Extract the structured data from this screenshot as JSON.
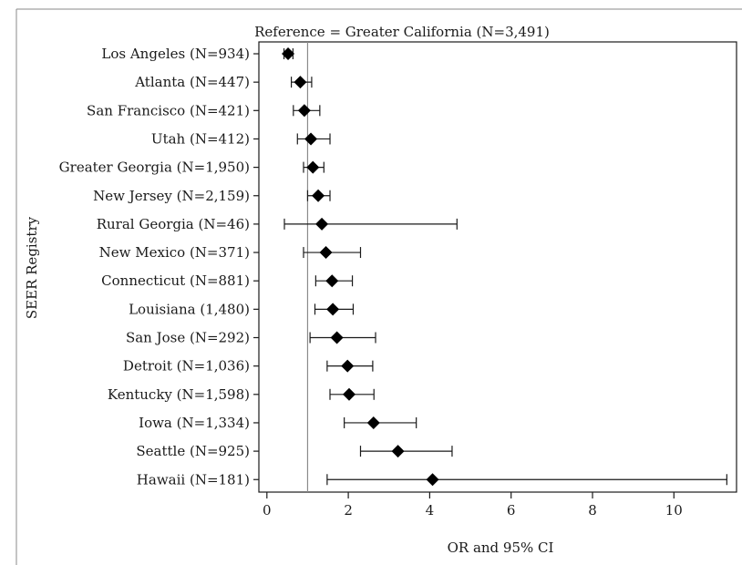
{
  "chart_data": {
    "type": "forest",
    "title": "Reference = Greater California (N=3,491)",
    "xlabel": "OR and 95% CI",
    "ylabel": "SEER Registry",
    "xlim": [
      -0.3,
      11.35
    ],
    "xticks": [
      0,
      2,
      4,
      6,
      8,
      10
    ],
    "reference_line": 1,
    "marker": "diamond",
    "categories": [
      "Los Angeles (N=934)",
      "Atlanta (N=447)",
      "San Francisco (N=421)",
      "Utah (N=412)",
      "Greater Georgia (N=1,950)",
      "New Jersey (N=2,159)",
      "Rural Georgia (N=46)",
      "New Mexico (N=371)",
      "Connecticut (N=881)",
      "Louisiana (1,480)",
      "San Jose (N=292)",
      "Detroit (N=1,036)",
      "Kentucky (N=1,598)",
      "Iowa (N=1,334)",
      "Seattle (N=925)",
      "Hawaii (N=181)"
    ],
    "or": [
      0.52,
      0.82,
      0.92,
      1.08,
      1.13,
      1.26,
      1.35,
      1.45,
      1.6,
      1.62,
      1.72,
      1.98,
      2.02,
      2.62,
      3.22,
      4.07
    ],
    "lower": [
      0.42,
      0.6,
      0.65,
      0.75,
      0.9,
      1.0,
      0.43,
      0.9,
      1.2,
      1.18,
      1.06,
      1.48,
      1.55,
      1.9,
      2.3,
      1.48
    ],
    "upper": [
      0.64,
      1.1,
      1.3,
      1.55,
      1.4,
      1.55,
      4.67,
      2.3,
      2.1,
      2.12,
      2.67,
      2.6,
      2.63,
      3.67,
      4.55,
      11.3
    ]
  }
}
